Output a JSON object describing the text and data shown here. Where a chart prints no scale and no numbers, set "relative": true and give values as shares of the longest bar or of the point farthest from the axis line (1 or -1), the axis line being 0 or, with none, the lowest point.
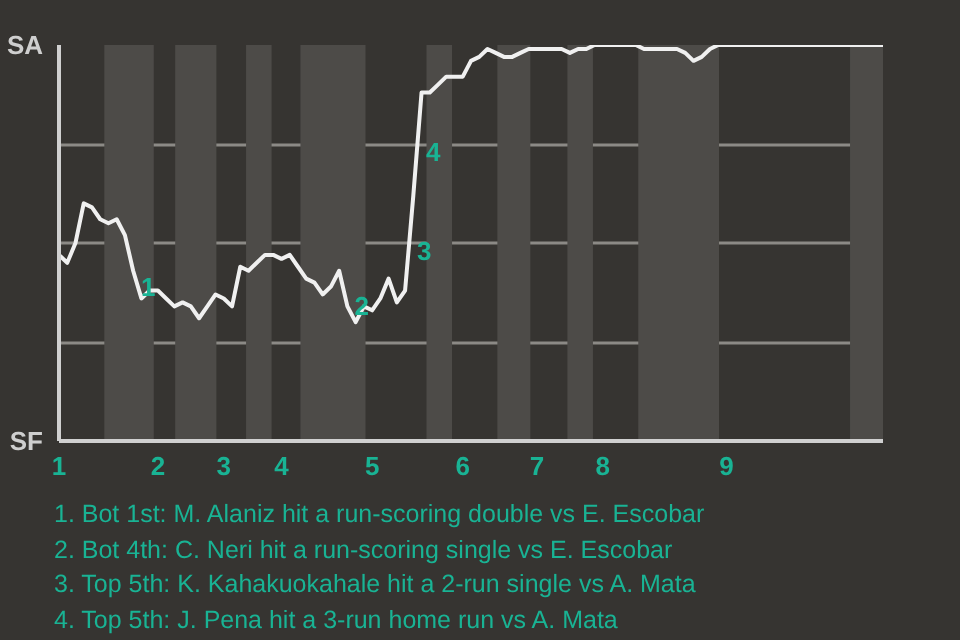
{
  "chart_data": {
    "type": "line",
    "categories": [
      "1",
      null,
      null,
      null,
      null,
      null,
      null,
      null,
      null,
      null,
      null,
      null,
      "2",
      null,
      null,
      null,
      null,
      null,
      null,
      null,
      "3",
      null,
      null,
      null,
      null,
      null,
      null,
      "4",
      null,
      null,
      null,
      null,
      null,
      null,
      null,
      null,
      null,
      null,
      "5",
      null,
      null,
      null,
      null,
      null,
      null,
      null,
      null,
      null,
      null,
      "6",
      null,
      null,
      null,
      null,
      null,
      null,
      null,
      null,
      "7",
      null,
      null,
      null,
      null,
      null,
      null,
      null,
      "8",
      null,
      null,
      null,
      null,
      null,
      null,
      null,
      null,
      null,
      null,
      null,
      null,
      null,
      null,
      "9",
      null,
      null,
      null,
      null,
      null,
      null,
      null,
      null,
      null,
      null,
      null,
      null,
      null,
      null,
      null,
      null,
      null,
      null,
      null
    ],
    "relative": true,
    "series": [
      {
        "color": "#f0f0f0",
        "values": [
          0.47,
          0.45,
          0.5,
          0.6,
          0.59,
          0.56,
          0.55,
          0.56,
          0.52,
          0.43,
          0.36,
          0.38,
          0.38,
          0.36,
          0.34,
          0.35,
          0.34,
          0.31,
          0.34,
          0.37,
          0.36,
          0.34,
          0.44,
          0.43,
          0.45,
          0.47,
          0.47,
          0.46,
          0.47,
          0.44,
          0.41,
          0.4,
          0.37,
          0.39,
          0.43,
          0.34,
          0.3,
          0.34,
          0.33,
          0.36,
          0.41,
          0.35,
          0.38,
          0.62,
          0.88,
          0.88,
          0.9,
          0.92,
          0.92,
          0.92,
          0.96,
          0.97,
          0.99,
          0.98,
          0.97,
          0.97,
          0.98,
          0.99,
          0.99,
          0.99,
          0.99,
          0.99,
          0.98,
          0.99,
          0.99,
          1.0,
          1.0,
          1.0,
          1.0,
          1.0,
          1.0,
          0.99,
          0.99,
          0.99,
          0.99,
          0.99,
          0.98,
          0.96,
          0.97,
          0.99,
          1.0,
          1.0,
          1.0,
          1.0,
          1.0,
          1.0,
          1.0,
          1.0,
          1.0,
          1.0,
          1.0,
          1.0,
          1.0,
          1.0,
          1.0,
          1.0,
          1.0,
          1.0,
          1.0,
          1.0,
          1.0
        ]
      }
    ],
    "grid": "y",
    "annotations": [
      "1",
      "2",
      "3",
      "4",
      "SA",
      "SF",
      "1. Bot 1st: M. Alaniz hit a run-scoring double vs E. Escobar",
      "2. Bot 4th: C. Neri hit a run-scoring single vs E. Escobar",
      "3. Top 5th: K. Kahakuokahale hit a 2-run single vs A. Mata",
      "4. Top 5th: J. Pena hit a 3-run home run vs A. Mata"
    ]
  }
}
